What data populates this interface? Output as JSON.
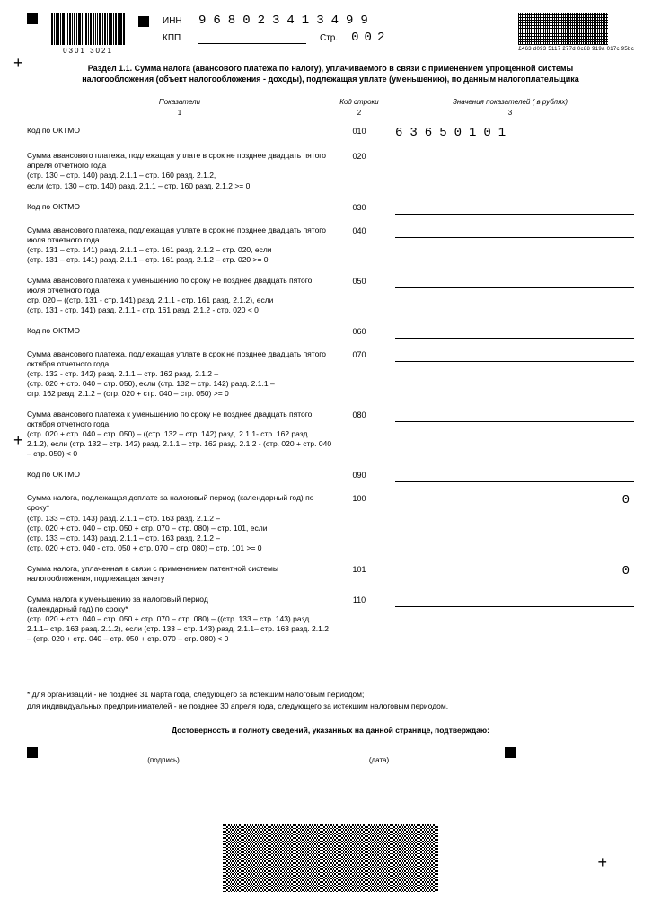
{
  "header": {
    "barcode_sub": "0301  3021",
    "inn_label": "ИНН",
    "inn_value": "968023413499",
    "kpp_label": "КПП",
    "str_label": "Стр.",
    "str_value": "002",
    "bc2d_sub": "£463 d093 5117 277d 0c88 919a 017c 95bc"
  },
  "title": "Раздел 1.1. Сумма налога (авансового платежа по налогу), уплачиваемого в связи с применением упрощенной системы налогообложения (объект налогообложения - доходы), подлежащая уплате (уменьшению), по данным налогоплательщика",
  "col_headers": {
    "c1": "Показатели",
    "c2": "Код строки",
    "c3": "Значения показателей ( в рублях)"
  },
  "col_nums": {
    "c1": "1",
    "c2": "2",
    "c3": "3"
  },
  "rows": [
    {
      "label": "Код по ОКТМО",
      "code": "010",
      "value": "63650101",
      "type": "text"
    },
    {
      "label": "Сумма авансового платежа, подлежащая уплате в срок не позднее двадцать пятого апреля отчетного года\n(стр. 130 – стр. 140) разд. 2.1.1 – стр. 160 разд. 2.1.2,\nесли (стр. 130 – стр. 140) разд. 2.1.1 – стр. 160 разд. 2.1.2 >= 0",
      "code": "020",
      "type": "line"
    },
    {
      "label": "Код по ОКТМО",
      "code": "030",
      "type": "line"
    },
    {
      "label": "Сумма авансового платежа, подлежащая уплате в срок не позднее двадцать пятого июля отчетного года\n(стр. 131 – стр. 141) разд. 2.1.1 – стр. 161 разд. 2.1.2 – стр. 020, если\n(стр. 131 – стр. 141) разд. 2.1.1 – стр. 161 разд. 2.1.2 – стр. 020 >= 0",
      "code": "040",
      "type": "line"
    },
    {
      "label": "Сумма авансового платежа к уменьшению по сроку не позднее двадцать пятого июля отчетного года\nстр. 020 – ((стр. 131 - стр. 141) разд. 2.1.1 - стр. 161 разд. 2.1.2), если\n(стр. 131 - стр. 141) разд. 2.1.1 - стр. 161 разд. 2.1.2 - стр. 020 < 0",
      "code": "050",
      "type": "line"
    },
    {
      "label": "Код по ОКТМО",
      "code": "060",
      "type": "line"
    },
    {
      "label": "Сумма авансового платежа, подлежащая уплате в срок не позднее двадцать пятого октября отчетного года\n(стр. 132 - стр. 142) разд. 2.1.1 – стр. 162 разд. 2.1.2 –\n(стр. 020 + стр. 040 – стр. 050), если (стр. 132 – стр. 142) разд. 2.1.1 –\nстр. 162 разд. 2.1.2 – (стр. 020 + стр. 040 – стр. 050) >= 0",
      "code": "070",
      "type": "line"
    },
    {
      "label": "Сумма авансового платежа к уменьшению по сроку не позднее двадцать пятого октября отчетного года\n(стр. 020 + стр. 040 – стр. 050) – ((стр. 132 – стр. 142) разд. 2.1.1- стр. 162 разд. 2.1.2), если (стр. 132 – стр. 142) разд. 2.1.1 – стр. 162 разд. 2.1.2 - (стр. 020 + стр. 040 – стр. 050) < 0",
      "code": "080",
      "type": "line"
    },
    {
      "label": "Код по ОКТМО",
      "code": "090",
      "type": "line"
    },
    {
      "label": "Сумма налога, подлежащая доплате за налоговый период (календарный год) по сроку*\n(стр. 133 – стр. 143) разд. 2.1.1 – стр. 163 разд. 2.1.2 –\n(стр. 020 + стр. 040 – стр. 050 + стр. 070 – стр. 080) – стр. 101, если\n(стр. 133 – стр. 143) разд. 2.1.1 – стр. 163 разд. 2.1.2 –\n(стр. 020 + стр. 040 - стр. 050 + стр. 070 – стр. 080) – стр. 101 >= 0",
      "code": "100",
      "value": "0",
      "type": "right"
    },
    {
      "label": "Сумма налога, уплаченная в связи с применением патентной системы налогообложения, подлежащая зачету",
      "code": "101",
      "value": "0",
      "type": "right"
    },
    {
      "label": "Сумма налога к уменьшению за налоговый период\n(календарный год) по сроку*\n(стр. 020 + стр. 040 – стр. 050 + стр. 070 – стр. 080) – ((стр. 133 – стр. 143) разд. 2.1.1– стр. 163 разд. 2.1.2), если (стр. 133 – стр. 143) разд. 2.1.1– стр. 163 разд. 2.1.2 – (стр. 020 + стр. 040 – стр. 050 + стр. 070 – стр. 080) < 0",
      "code": "110",
      "type": "line"
    }
  ],
  "footnote": "* для организаций - не позднее 31 марта года, следующего за истекшим налоговым периодом;\n   для индивидуальных предпринимателей - не позднее 30 апреля года, следующего за истекшим налоговым периодом.",
  "confirm": "Достоверность и полноту сведений, указанных на данной странице, подтверждаю:",
  "sig": {
    "l1": "(подпись)",
    "l2": "(дата)"
  }
}
